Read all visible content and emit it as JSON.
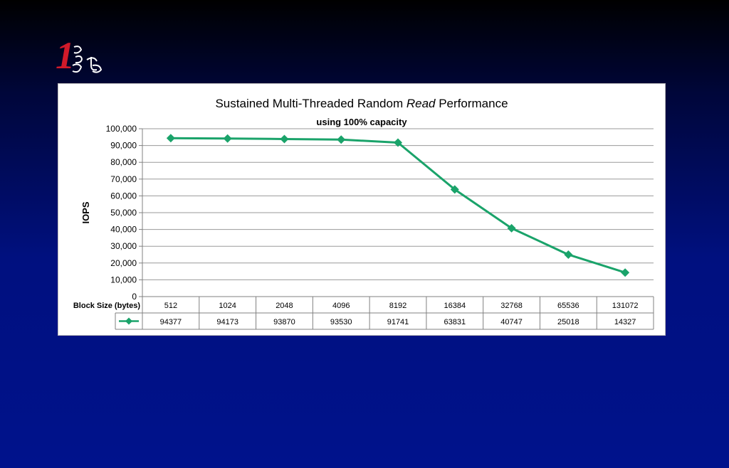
{
  "chart_data": {
    "type": "line",
    "title_parts": [
      {
        "text": "Sustained Multi-Threaded Random ",
        "italic": false
      },
      {
        "text": "Read",
        "italic": true
      },
      {
        "text": " Performance",
        "italic": false
      }
    ],
    "subtitle": "using 100% capacity",
    "ylabel": "IOPS",
    "xlabel": "Block Size (bytes)",
    "categories": [
      "512",
      "1024",
      "2048",
      "4096",
      "8192",
      "16384",
      "32768",
      "65536",
      "131072"
    ],
    "series": [
      {
        "values": [
          94377,
          94173,
          93870,
          93530,
          91741,
          63831,
          40747,
          25018,
          14327
        ],
        "color": "#1aa36a"
      }
    ],
    "ylim": [
      0,
      100000
    ],
    "yticks": [
      "0",
      "10,000",
      "20,000",
      "30,000",
      "40,000",
      "50,000",
      "60,000",
      "70,000",
      "80,000",
      "90,000",
      "100,000"
    ],
    "grid": true,
    "legend": "data-table"
  },
  "logo": {
    "color_primary": "#d11a2a",
    "color_secondary": "#ffffff"
  }
}
